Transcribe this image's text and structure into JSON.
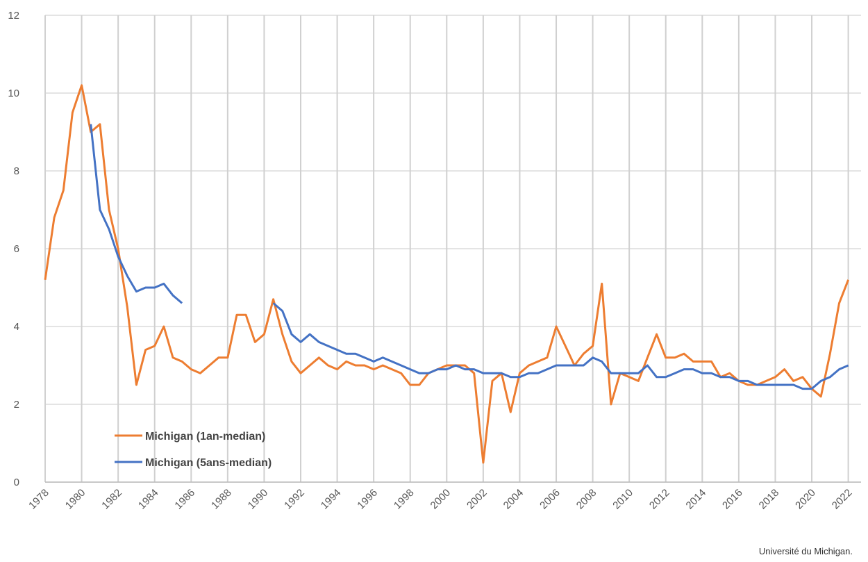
{
  "chart_data": {
    "type": "line",
    "x": [
      1978.0,
      1978.5,
      1979.0,
      1979.5,
      1980.0,
      1980.5,
      1981.0,
      1981.5,
      1982.0,
      1982.5,
      1983.0,
      1983.5,
      1984.0,
      1984.5,
      1985.0,
      1985.5,
      1986.0,
      1986.5,
      1987.0,
      1987.5,
      1988.0,
      1988.5,
      1989.0,
      1989.5,
      1990.0,
      1990.5,
      1991.0,
      1991.5,
      1992.0,
      1992.5,
      1993.0,
      1993.5,
      1994.0,
      1994.5,
      1995.0,
      1995.5,
      1996.0,
      1996.5,
      1997.0,
      1997.5,
      1998.0,
      1998.5,
      1999.0,
      1999.5,
      2000.0,
      2000.5,
      2001.0,
      2001.5,
      2002.0,
      2002.5,
      2003.0,
      2003.5,
      2004.0,
      2004.5,
      2005.0,
      2005.5,
      2006.0,
      2006.5,
      2007.0,
      2007.5,
      2008.0,
      2008.5,
      2009.0,
      2009.5,
      2010.0,
      2010.5,
      2011.0,
      2011.5,
      2012.0,
      2012.5,
      2013.0,
      2013.5,
      2014.0,
      2014.5,
      2015.0,
      2015.5,
      2016.0,
      2016.5,
      2017.0,
      2017.5,
      2018.0,
      2018.5,
      2019.0,
      2019.5,
      2020.0,
      2020.5,
      2021.0,
      2021.5,
      2022.0
    ],
    "series": [
      {
        "name": "Michigan (1an-median)",
        "color": "#ed7d31",
        "values": [
          5.2,
          6.8,
          7.5,
          9.5,
          10.2,
          9.0,
          9.2,
          7.0,
          6.0,
          4.5,
          2.5,
          3.4,
          3.5,
          4.0,
          3.2,
          3.1,
          2.9,
          2.8,
          3.0,
          3.2,
          3.2,
          4.3,
          4.3,
          3.6,
          3.8,
          4.7,
          3.8,
          3.1,
          2.8,
          3.0,
          3.2,
          3.0,
          2.9,
          3.1,
          3.0,
          3.0,
          2.9,
          3.0,
          2.9,
          2.8,
          2.5,
          2.5,
          2.8,
          2.9,
          3.0,
          3.0,
          3.0,
          2.8,
          0.5,
          2.6,
          2.8,
          1.8,
          2.8,
          3.0,
          3.1,
          3.2,
          4.0,
          3.5,
          3.0,
          3.3,
          3.5,
          5.1,
          2.0,
          2.8,
          2.7,
          2.6,
          3.2,
          3.8,
          3.2,
          3.2,
          3.3,
          3.1,
          3.1,
          3.1,
          2.7,
          2.8,
          2.6,
          2.5,
          2.5,
          2.6,
          2.7,
          2.9,
          2.6,
          2.7,
          2.4,
          2.2,
          3.3,
          4.6,
          5.2
        ]
      },
      {
        "name": "Michigan (5ans-median)",
        "color": "#4472c4",
        "values": [
          null,
          null,
          null,
          null,
          null,
          9.2,
          7.0,
          6.5,
          5.8,
          5.3,
          4.9,
          5.0,
          5.0,
          5.1,
          4.8,
          4.6,
          null,
          null,
          null,
          null,
          null,
          null,
          null,
          null,
          null,
          4.6,
          4.4,
          3.8,
          3.6,
          3.8,
          3.6,
          3.5,
          3.4,
          3.3,
          3.3,
          3.2,
          3.1,
          3.2,
          3.1,
          3.0,
          2.9,
          2.8,
          2.8,
          2.9,
          2.9,
          3.0,
          2.9,
          2.9,
          2.8,
          2.8,
          2.8,
          2.7,
          2.7,
          2.8,
          2.8,
          2.9,
          3.0,
          3.0,
          3.0,
          3.0,
          3.2,
          3.1,
          2.8,
          2.8,
          2.8,
          2.8,
          3.0,
          2.7,
          2.7,
          2.8,
          2.9,
          2.9,
          2.8,
          2.8,
          2.7,
          2.7,
          2.6,
          2.6,
          2.5,
          2.5,
          2.5,
          2.5,
          2.5,
          2.4,
          2.4,
          2.6,
          2.7,
          2.9,
          3.0
        ]
      }
    ],
    "xlim": [
      1978,
      2022.7
    ],
    "xticks": [
      1978,
      1980,
      1982,
      1984,
      1986,
      1988,
      1990,
      1992,
      1994,
      1996,
      1998,
      2000,
      2002,
      2004,
      2006,
      2008,
      2010,
      2012,
      2014,
      2016,
      2018,
      2020,
      2022
    ],
    "ylim": [
      0,
      12
    ],
    "yticks": [
      0,
      2,
      4,
      6,
      8,
      10,
      12
    ],
    "grid": true,
    "legend": "lower left",
    "source": "Université du Michigan."
  }
}
